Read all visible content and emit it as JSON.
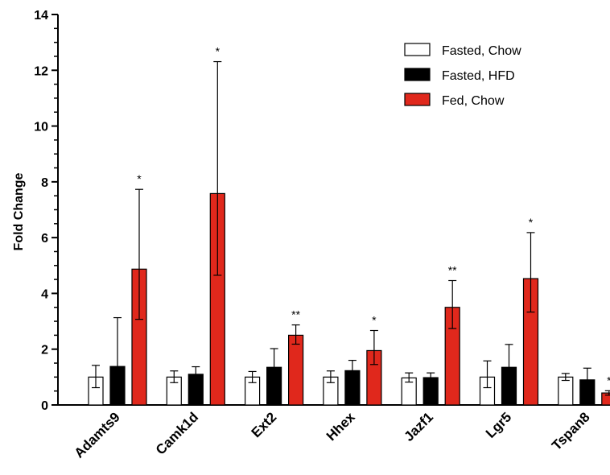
{
  "chart_data": {
    "type": "bar",
    "ylabel": "Fold Change",
    "ylim": [
      0,
      14
    ],
    "yticks": [
      0,
      2,
      4,
      6,
      8,
      10,
      12,
      14
    ],
    "categories": [
      "Adamts9",
      "Camk1d",
      "Ext2",
      "Hhex",
      "Jazf1",
      "Lgr5",
      "Tspan8"
    ],
    "series": [
      {
        "name": "Fasted, Chow",
        "color": "#ffffff",
        "values": [
          1.0,
          1.0,
          1.0,
          1.0,
          0.97,
          1.0,
          1.0
        ],
        "error_low": [
          0.38,
          0.2,
          0.2,
          0.2,
          0.15,
          0.38,
          0.12
        ],
        "error_high": [
          0.42,
          0.22,
          0.2,
          0.22,
          0.18,
          0.58,
          0.13
        ]
      },
      {
        "name": "Fasted, HFD",
        "color": "#000000",
        "values": [
          1.38,
          1.1,
          1.35,
          1.23,
          0.98,
          1.35,
          0.9
        ],
        "error_low": [
          0.0,
          0.0,
          0.0,
          0.0,
          0.0,
          0.0,
          0.0
        ],
        "error_high": [
          1.75,
          0.27,
          0.67,
          0.37,
          0.17,
          0.82,
          0.42
        ]
      },
      {
        "name": "Fed, Chow",
        "color": "#e0281c",
        "values": [
          4.87,
          7.58,
          2.5,
          1.95,
          3.5,
          4.53,
          0.43
        ],
        "error_low": [
          1.8,
          2.93,
          0.32,
          0.5,
          0.76,
          1.2,
          0.08
        ],
        "error_high": [
          2.86,
          4.73,
          0.37,
          0.72,
          0.96,
          1.65,
          0.08
        ]
      }
    ],
    "significance": [
      "*",
      "*",
      "**",
      "*",
      "**",
      "*",
      "*"
    ],
    "legend_position": "top-right",
    "grid": false
  }
}
